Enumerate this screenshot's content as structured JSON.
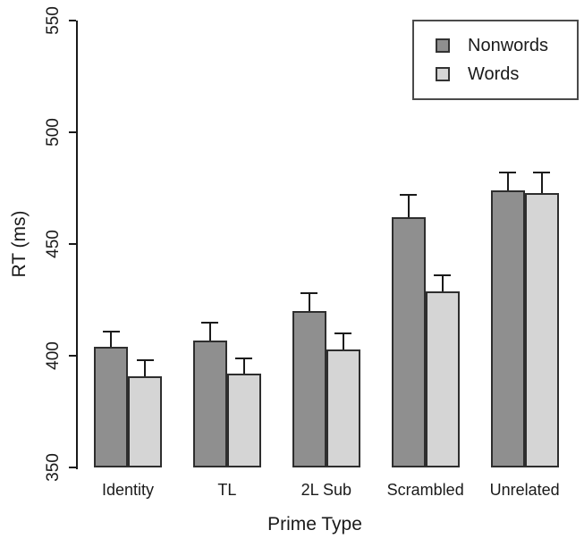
{
  "figure": {
    "y_axis_title": "RT (ms)",
    "x_axis_title": "Prime Type"
  },
  "legend": {
    "items": [
      {
        "label": "Nonwords",
        "color": "#8f8f8f"
      },
      {
        "label": "Words",
        "color": "#d5d5d5"
      }
    ]
  },
  "chart_data": {
    "type": "bar",
    "title": "",
    "xlabel": "Prime Type",
    "ylabel": "RT (ms)",
    "ylim": [
      350,
      550
    ],
    "yticks": [
      350,
      400,
      450,
      500,
      550
    ],
    "grid": false,
    "legend_position": "top-right",
    "bar_border_color": "#2e2e2e",
    "error_bar_color": "#1a1a1a",
    "categories": [
      "Identity",
      "TL",
      "2L Sub",
      "Scrambled",
      "Unrelated"
    ],
    "series": [
      {
        "name": "Nonwords",
        "color": "#8f8f8f",
        "values": [
          404,
          407,
          420,
          462,
          474
        ],
        "error_upper": [
          7,
          8,
          8,
          10,
          8
        ]
      },
      {
        "name": "Words",
        "color": "#d5d5d5",
        "values": [
          391,
          392,
          403,
          429,
          473
        ],
        "error_upper": [
          7,
          7,
          7,
          7,
          9
        ]
      }
    ]
  }
}
